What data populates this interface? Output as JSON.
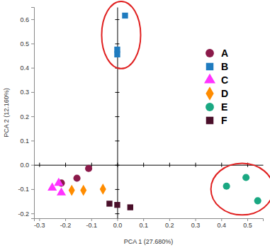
{
  "chart_data": {
    "type": "scatter",
    "x_label": "PCA 1 (27.680%)",
    "y_label": "PCA 2 (12.160%)",
    "xlim": [
      -0.32,
      0.56
    ],
    "ylim": [
      -0.22,
      0.65
    ],
    "xticks": [
      -0.3,
      -0.2,
      -0.1,
      {
        "value": 0,
        "label": "0.0"
      },
      0.1,
      0.2,
      0.3,
      0.4,
      0.5
    ],
    "yticks": [
      -0.2,
      -0.1,
      {
        "value": 0,
        "label": "0.0"
      },
      0.1,
      0.2,
      0.3,
      0.4,
      0.5,
      0.6
    ],
    "legend": "upper right",
    "series": [
      {
        "name": "A",
        "color": "#8b1a4a",
        "marker": "circle",
        "x": [
          -0.11,
          -0.155,
          -0.215
        ],
        "values": [
          -0.015,
          -0.055,
          -0.075
        ]
      },
      {
        "name": "B",
        "color": "#1f7bbf",
        "marker": "square",
        "x": [
          0.03,
          0.0,
          0.0
        ],
        "values": [
          0.615,
          0.475,
          0.455
        ]
      },
      {
        "name": "C",
        "color": "#ff33ff",
        "marker": "triangle",
        "x": [
          -0.25,
          -0.215,
          -0.225
        ],
        "values": [
          -0.095,
          -0.115,
          -0.075
        ]
      },
      {
        "name": "D",
        "color": "#ff8c00",
        "marker": "diamond",
        "x": [
          -0.175,
          -0.13,
          -0.055
        ],
        "values": [
          -0.105,
          -0.105,
          -0.1
        ]
      },
      {
        "name": "E",
        "color": "#1aa882",
        "marker": "circle",
        "x": [
          0.42,
          0.495,
          0.54
        ],
        "values": [
          -0.088,
          -0.052,
          -0.148
        ]
      },
      {
        "name": "F",
        "color": "#4a0f2a",
        "marker": "square",
        "x": [
          -0.03,
          0.0,
          0.05
        ],
        "values": [
          -0.16,
          -0.165,
          -0.175
        ]
      }
    ]
  }
}
